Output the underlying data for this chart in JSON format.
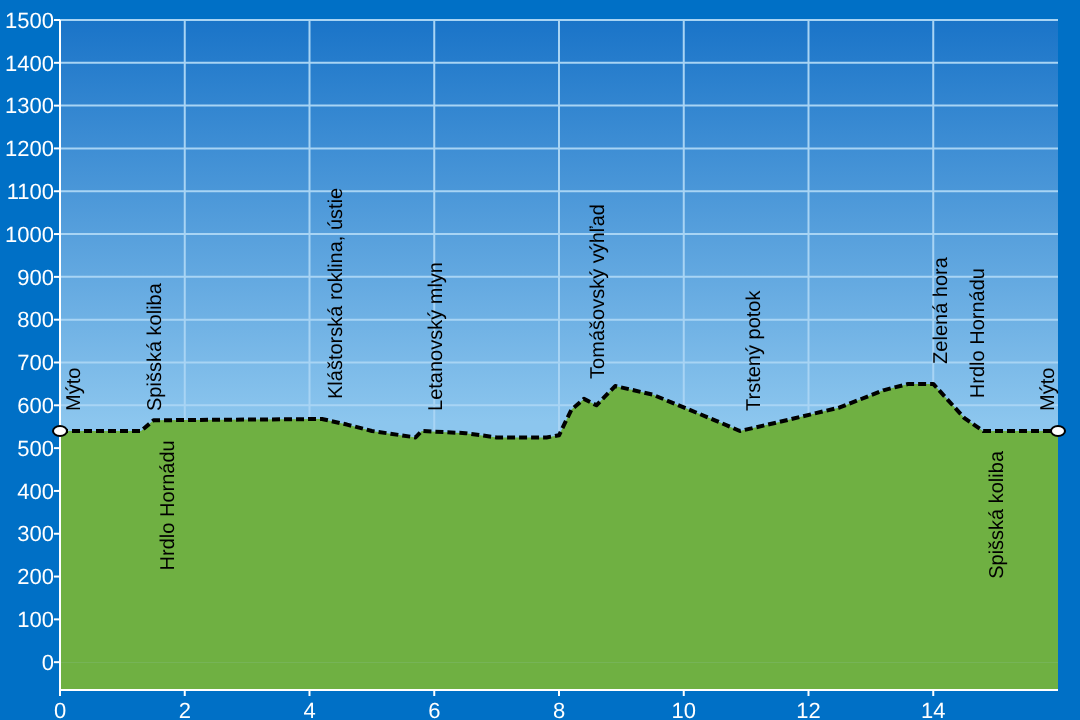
{
  "chart_data": {
    "type": "area",
    "line_style": "dashed",
    "grid": true,
    "xlim": [
      0,
      16
    ],
    "xticks": [
      0,
      2,
      4,
      6,
      8,
      10,
      12,
      14
    ],
    "ylim": [
      -65,
      1500
    ],
    "yticks": [
      0,
      100,
      200,
      300,
      400,
      500,
      600,
      700,
      800,
      900,
      1000,
      1100,
      1200,
      1300,
      1400,
      1500
    ],
    "series": [
      {
        "color": "#6fb042",
        "x": [
          0,
          1.3,
          1.5,
          4.2,
          4.6,
          5.0,
          5.7,
          5.8,
          6.5,
          7.0,
          7.8,
          8.0,
          8.2,
          8.4,
          8.6,
          8.9,
          9.5,
          10.5,
          10.9,
          11.5,
          12.5,
          13.2,
          13.6,
          14.0,
          14.5,
          14.8,
          16
        ],
        "values": [
          540,
          540,
          565,
          568,
          555,
          540,
          525,
          540,
          535,
          525,
          525,
          530,
          590,
          615,
          600,
          645,
          625,
          565,
          540,
          560,
          595,
          635,
          650,
          650,
          570,
          540,
          540
        ]
      }
    ],
    "annotations": [
      {
        "text": "Mýto",
        "x": 0,
        "y": 540
      },
      {
        "text": "Spišská koliba",
        "x": 1.3,
        "y": 540
      },
      {
        "text": "Hrdlo Hornádu",
        "x": 1.5,
        "y": 565
      },
      {
        "text": "Kláštorská roklina, ústie",
        "x": 4.2,
        "y": 568
      },
      {
        "text": "Letanovský mlyn",
        "x": 5.8,
        "y": 540
      },
      {
        "text": "Tomášovský výhľad",
        "x": 8.4,
        "y": 615
      },
      {
        "text": "Trstený potok",
        "x": 10.9,
        "y": 540
      },
      {
        "text": "Zelená hora",
        "x": 13.9,
        "y": 650
      },
      {
        "text": "Hrdlo Hornádu",
        "x": 14.5,
        "y": 570
      },
      {
        "text": "Spišská koliba",
        "x": 14.8,
        "y": 540
      },
      {
        "text": "Mýto",
        "x": 16,
        "y": 540
      }
    ]
  }
}
